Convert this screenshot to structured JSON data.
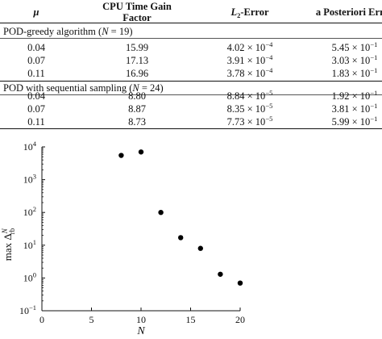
{
  "table": {
    "headers": {
      "mu": "μ",
      "cpu_line1": "CPU Time Gain",
      "cpu_line2": "Factor",
      "l2_pre": "L",
      "l2_sub": "2",
      "l2_post": "-Error",
      "apost": "a Posteriori Error"
    },
    "groups": [
      {
        "label_pre": "POD-greedy algorithm (",
        "label_var": "N",
        "label_post": " = 19)",
        "rows": [
          {
            "mu": "0.04",
            "cpu": "15.99",
            "l2_m": "4.02 × 10",
            "l2_e": "−4",
            "ap_m": "5.45 × 10",
            "ap_e": "−1"
          },
          {
            "mu": "0.07",
            "cpu": "17.13",
            "l2_m": "3.91 × 10",
            "l2_e": "−4",
            "ap_m": "3.03 × 10",
            "ap_e": "−1"
          },
          {
            "mu": "0.11",
            "cpu": "16.96",
            "l2_m": "3.78 × 10",
            "l2_e": "−4",
            "ap_m": "1.83 × 10",
            "ap_e": "−1"
          }
        ]
      },
      {
        "label_pre": "POD with sequential sampling (",
        "label_var": "N",
        "label_post": " = 24)",
        "rows": [
          {
            "mu": "0.04",
            "cpu": "8.80",
            "l2_m": "8.84 × 10",
            "l2_e": "−5",
            "ap_m": "1.92 × 10",
            "ap_e": "−1"
          },
          {
            "mu": "0.07",
            "cpu": "8.87",
            "l2_m": "8.35 × 10",
            "l2_e": "−5",
            "ap_m": "3.81 × 10",
            "ap_e": "−1"
          },
          {
            "mu": "0.11",
            "cpu": "8.73",
            "l2_m": "7.73 × 10",
            "l2_e": "−5",
            "ap_m": "5.99 × 10",
            "ap_e": "−1"
          }
        ]
      }
    ]
  },
  "chart_data": {
    "type": "scatter",
    "xlabel": "N",
    "ylabel": "max Δ_rb^N",
    "ylabel_parts": {
      "pre": "max Δ",
      "sup": "N",
      "sub": "rb"
    },
    "xlim": [
      0,
      20
    ],
    "ylim": [
      0.1,
      10000
    ],
    "yscale": "log",
    "x_ticks": [
      "0",
      "5",
      "10",
      "15",
      "20"
    ],
    "y_ticks": [
      {
        "base": "10",
        "exp": "4"
      },
      {
        "base": "10",
        "exp": "3"
      },
      {
        "base": "10",
        "exp": "2"
      },
      {
        "base": "10",
        "exp": "1"
      },
      {
        "base": "10",
        "exp": "0"
      },
      {
        "base": "10",
        "exp": "−1"
      }
    ],
    "points": [
      {
        "x": 8,
        "y": 5500
      },
      {
        "x": 10,
        "y": 7000
      },
      {
        "x": 12,
        "y": 100
      },
      {
        "x": 14,
        "y": 17
      },
      {
        "x": 16,
        "y": 8
      },
      {
        "x": 18,
        "y": 1.3
      },
      {
        "x": 20,
        "y": 0.7
      }
    ],
    "grid": false,
    "marker_color": "#000000"
  }
}
